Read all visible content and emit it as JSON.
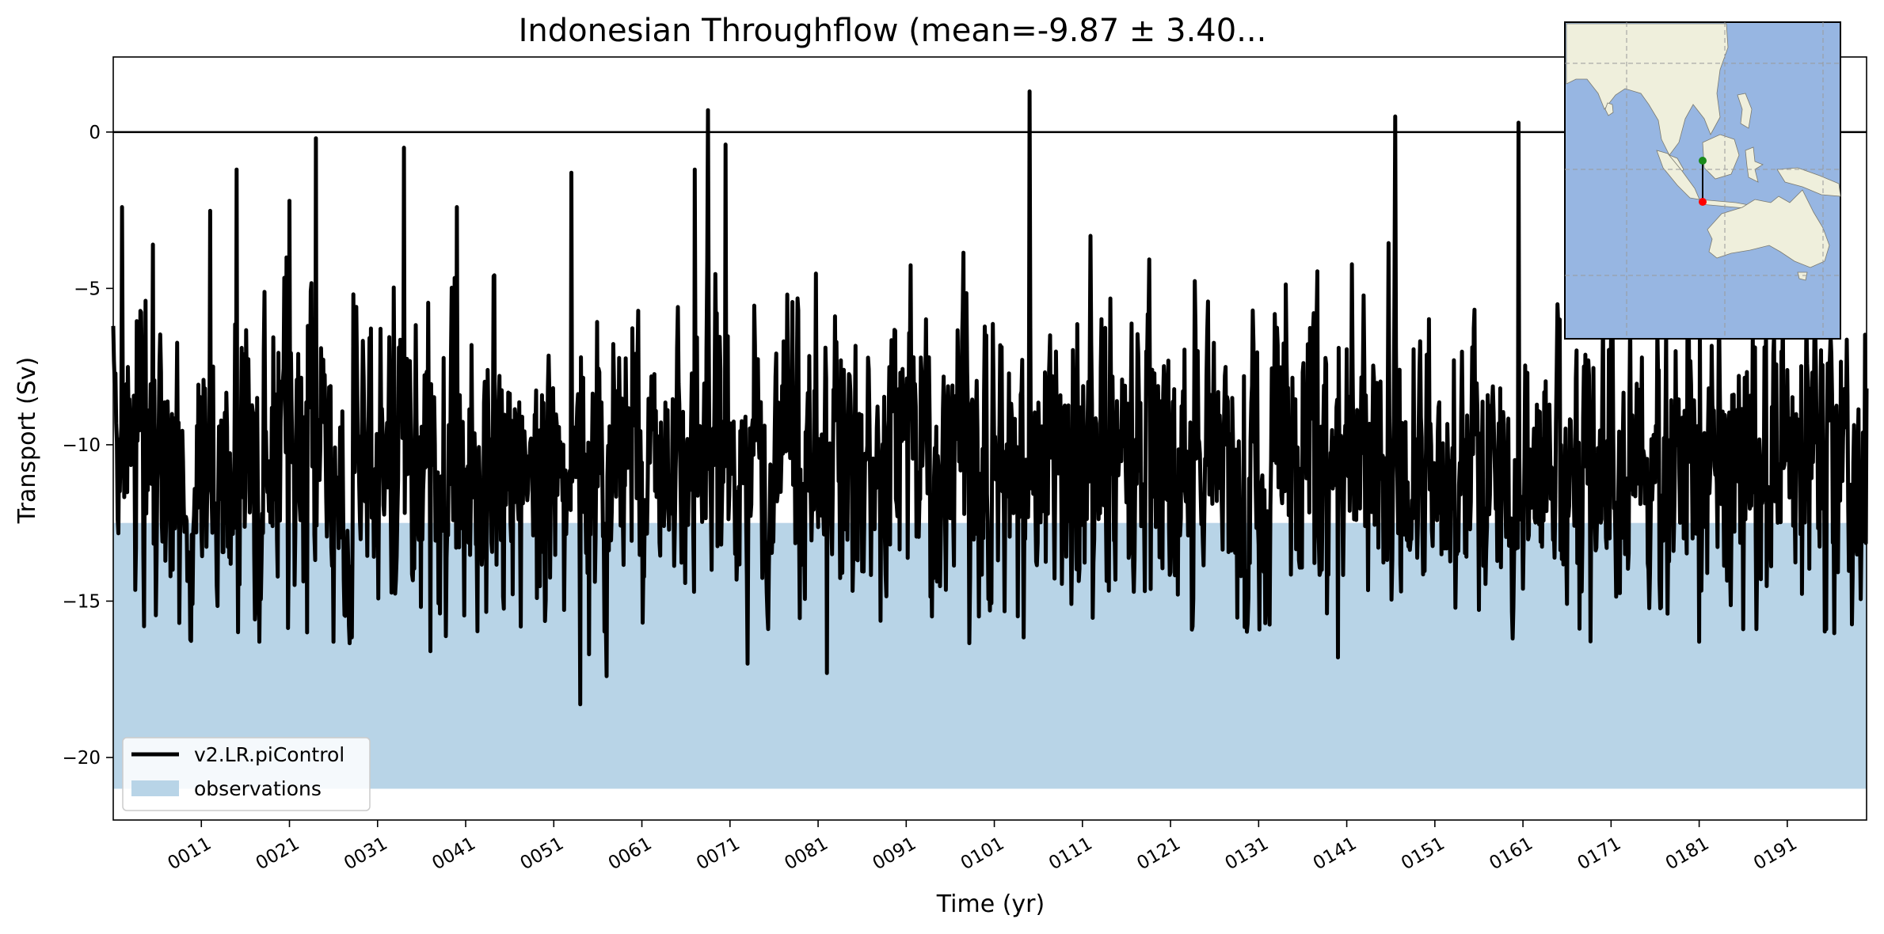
{
  "chart_data": {
    "type": "line",
    "title": "Indonesian Throughflow (mean=-9.87 ± 3.40...",
    "xlabel": "Time (yr)",
    "ylabel": "Transport (Sv)",
    "xlim": [
      1,
      200
    ],
    "ylim": [
      -22,
      2.4
    ],
    "x_tick_labels": [
      "0011",
      "0021",
      "0031",
      "0041",
      "0051",
      "0061",
      "0071",
      "0081",
      "0091",
      "0101",
      "0111",
      "0121",
      "0131",
      "0141",
      "0151",
      "0161",
      "0171",
      "0181",
      "0191"
    ],
    "x_tick_values": [
      11,
      21,
      31,
      41,
      51,
      61,
      71,
      81,
      91,
      101,
      111,
      121,
      131,
      141,
      151,
      161,
      171,
      181,
      191
    ],
    "y_tick_values": [
      0,
      -5,
      -10,
      -15,
      -20
    ],
    "y_tick_labels": [
      "0",
      "−5",
      "−10",
      "−15",
      "−20"
    ],
    "zero_line": 0,
    "series": [
      {
        "name": "v2.LR.piControl",
        "color": "#000000",
        "sampling": "monthly",
        "mean": -9.87,
        "std": 3.4,
        "extremes": [
          {
            "x": 1.0,
            "y": -6.2
          },
          {
            "x": 2.0,
            "y": -2.4
          },
          {
            "x": 5.5,
            "y": -3.6
          },
          {
            "x": 8.5,
            "y": -15.7
          },
          {
            "x": 15.0,
            "y": -1.2
          },
          {
            "x": 21.0,
            "y": -2.2
          },
          {
            "x": 23.0,
            "y": -16.0
          },
          {
            "x": 24.0,
            "y": -0.2
          },
          {
            "x": 26.0,
            "y": -16.3
          },
          {
            "x": 34.0,
            "y": -0.5
          },
          {
            "x": 37.0,
            "y": -16.6
          },
          {
            "x": 40.0,
            "y": -2.4
          },
          {
            "x": 53.0,
            "y": -1.3
          },
          {
            "x": 54.0,
            "y": -18.3
          },
          {
            "x": 55.0,
            "y": -16.7
          },
          {
            "x": 57.0,
            "y": -17.4
          },
          {
            "x": 67.0,
            "y": -1.2
          },
          {
            "x": 68.5,
            "y": 0.7
          },
          {
            "x": 70.5,
            "y": -0.4
          },
          {
            "x": 73.0,
            "y": -17.0
          },
          {
            "x": 82.0,
            "y": -17.3
          },
          {
            "x": 105.0,
            "y": 1.3
          },
          {
            "x": 140.0,
            "y": -16.8
          },
          {
            "x": 146.5,
            "y": 0.5
          },
          {
            "x": 160.5,
            "y": 0.3
          },
          {
            "x": 181.0,
            "y": -16.3
          },
          {
            "x": 186.0,
            "y": -15.9
          },
          {
            "x": 200.0,
            "y": -8.2
          }
        ]
      }
    ],
    "observations_band": {
      "name": "observations",
      "range": [
        -21,
        -12.5
      ],
      "color": "#b8d4e7"
    },
    "legend": {
      "placement": "lower-left",
      "entries": [
        "v2.LR.piControl",
        "observations"
      ]
    },
    "grid": false,
    "inset_map": {
      "placement": "top-right",
      "ocean_color": "#97b6e2",
      "land_color": "#efefdc",
      "section_start_color": "#1a8a1a",
      "section_end_color": "#ff0000",
      "gridlines": "dashed"
    }
  }
}
